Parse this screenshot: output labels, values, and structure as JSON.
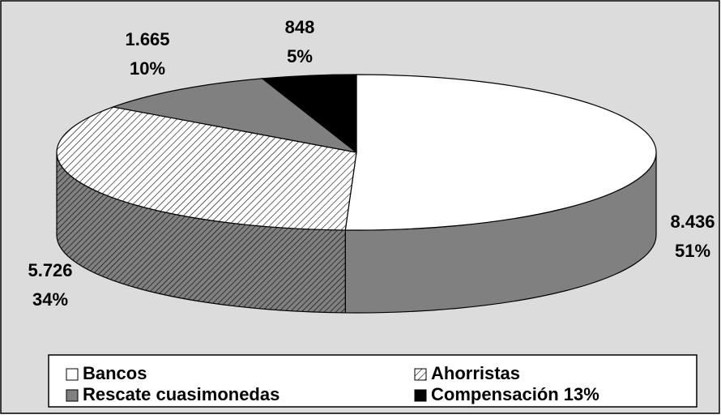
{
  "chart_data": {
    "type": "pie3d",
    "categories": [
      "Bancos",
      "Ahorristas",
      "Rescate cuasimonedas",
      "Compensación 13%"
    ],
    "values": [
      8436,
      5726,
      1665,
      848
    ],
    "value_labels": [
      "8.436",
      "5.726",
      "1.665",
      "848"
    ],
    "percent_labels": [
      "51%",
      "34%",
      "10%",
      "5%"
    ],
    "colors": [
      "#ffffff",
      "hatch",
      "#808080",
      "#000000"
    ],
    "legend": "bottom"
  }
}
